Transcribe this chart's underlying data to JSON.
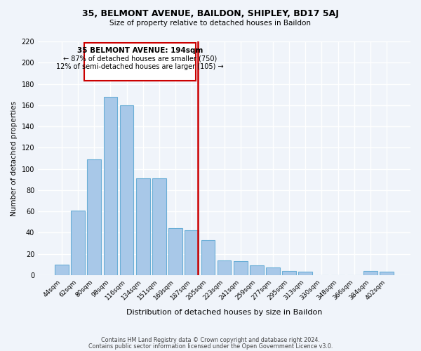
{
  "title": "35, BELMONT AVENUE, BAILDON, SHIPLEY, BD17 5AJ",
  "subtitle": "Size of property relative to detached houses in Baildon",
  "xlabel": "Distribution of detached houses by size in Baildon",
  "ylabel": "Number of detached properties",
  "footer_lines": [
    "Contains HM Land Registry data © Crown copyright and database right 2024.",
    "Contains public sector information licensed under the Open Government Licence v3.0."
  ],
  "categories": [
    "44sqm",
    "62sqm",
    "80sqm",
    "98sqm",
    "116sqm",
    "134sqm",
    "151sqm",
    "169sqm",
    "187sqm",
    "205sqm",
    "223sqm",
    "241sqm",
    "259sqm",
    "277sqm",
    "295sqm",
    "313sqm",
    "330sqm",
    "348sqm",
    "366sqm",
    "384sqm",
    "402sqm"
  ],
  "values": [
    10,
    61,
    109,
    168,
    160,
    91,
    91,
    44,
    42,
    33,
    14,
    13,
    9,
    7,
    4,
    3,
    0,
    0,
    0,
    4,
    3
  ],
  "bar_color": "#a8c8e8",
  "bar_edge_color": "#6aaed6",
  "marker_label": "35 BELMONT AVENUE: 194sqm",
  "marker_pct_smaller": 87,
  "marker_count_smaller": 750,
  "marker_pct_larger_semi": 12,
  "marker_count_larger_semi": 105,
  "annotation_box_color": "#ffffff",
  "annotation_box_edge": "#cc0000",
  "vline_color": "#cc0000",
  "ylim": [
    0,
    220
  ],
  "background_color": "#f0f4fa"
}
